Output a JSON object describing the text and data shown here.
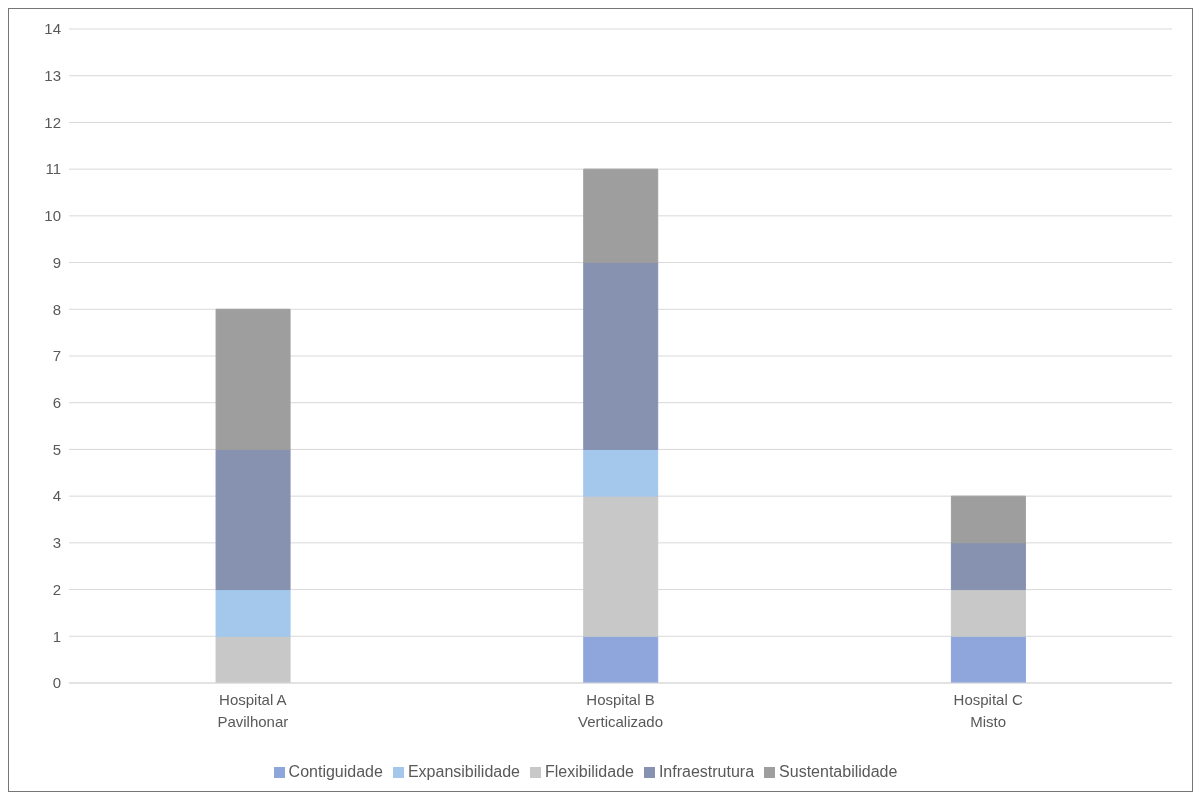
{
  "chart_data": {
    "type": "bar",
    "stacked": true,
    "categories": [
      "Hospital A\nPavilhonar",
      "Hospital B\nVerticalizado",
      "Hospital C\nMisto"
    ],
    "series": [
      {
        "name": "Contiguidade",
        "color": "#8ea6dc",
        "values": [
          0,
          1,
          1
        ]
      },
      {
        "name": "Flexibilidade",
        "color": "#c8c8c8",
        "values": [
          1,
          3,
          1
        ]
      },
      {
        "name": "Expansibilidade",
        "color": "#a3c8ec",
        "values": [
          1,
          1,
          0
        ]
      },
      {
        "name": "Infraestrutura",
        "color": "#8791b0",
        "values": [
          3,
          4,
          1
        ]
      },
      {
        "name": "Sustentabilidade",
        "color": "#9e9e9e",
        "values": [
          3,
          2,
          1
        ]
      }
    ],
    "ylim": [
      0,
      14
    ],
    "yticks": [
      0,
      1,
      2,
      3,
      4,
      5,
      6,
      7,
      8,
      9,
      10,
      11,
      12,
      13,
      14
    ],
    "grid": "y",
    "legend": "bottom"
  }
}
